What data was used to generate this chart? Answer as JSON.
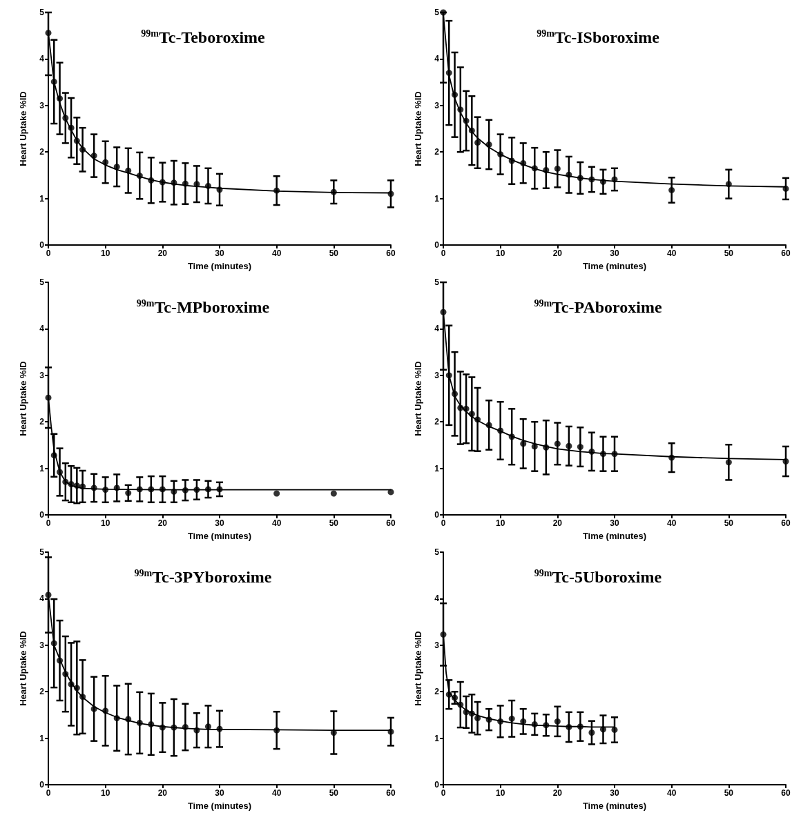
{
  "chart_data": [
    {
      "type": "scatter",
      "title": "$^{99m}$Tc-Teboroxime",
      "xlabel": "Time (minutes)",
      "ylabel": "Heart Uptake %ID",
      "xlim": [
        0,
        60
      ],
      "xticks": [
        0,
        10,
        20,
        30,
        40,
        50,
        60
      ],
      "ylim": [
        0,
        5
      ],
      "yticks": [
        0,
        1,
        2,
        3,
        4,
        5
      ],
      "marker": "circle",
      "x": [
        0,
        1,
        2,
        3,
        4,
        5,
        6,
        8,
        10,
        12,
        14,
        16,
        18,
        20,
        22,
        24,
        26,
        28,
        30,
        40,
        50,
        60
      ],
      "series": [
        {
          "type": "scatter",
          "color": "#000000",
          "values": [
            4.56,
            3.51,
            3.15,
            2.73,
            2.52,
            2.24,
            2.05,
            1.92,
            1.78,
            1.68,
            1.6,
            1.49,
            1.39,
            1.35,
            1.34,
            1.32,
            1.31,
            1.27,
            1.19,
            1.17,
            1.14,
            1.1
          ],
          "errors": [
            [
              3.65,
              5
            ],
            0.9,
            0.77,
            0.54,
            0.64,
            0.5,
            0.47,
            0.46,
            0.45,
            0.42,
            0.48,
            0.5,
            0.49,
            0.42,
            0.47,
            0.44,
            0.39,
            0.38,
            0.34,
            0.31,
            0.25,
            0.29
          ]
        },
        {
          "type": "line",
          "marker": "none",
          "color": "#000000",
          "x": [
            0,
            1,
            2,
            3,
            4,
            5,
            6,
            8,
            10,
            12,
            14,
            16,
            18,
            20,
            22,
            24,
            26,
            28,
            30,
            40,
            50,
            60
          ],
          "values": [
            4.56,
            3.5,
            3.05,
            2.72,
            2.47,
            2.25,
            2.08,
            1.85,
            1.72,
            1.62,
            1.55,
            1.47,
            1.4,
            1.35,
            1.31,
            1.28,
            1.26,
            1.24,
            1.22,
            1.16,
            1.13,
            1.12
          ]
        }
      ]
    },
    {
      "type": "scatter",
      "title": "$^{99m}$Tc-ISboroxime",
      "xlabel": "Time (minutes)",
      "ylabel": "Heart Uptake %ID",
      "xlim": [
        0,
        60
      ],
      "xticks": [
        0,
        10,
        20,
        30,
        40,
        50,
        60
      ],
      "ylim": [
        0,
        5
      ],
      "yticks": [
        0,
        1,
        2,
        3,
        4,
        5
      ],
      "marker": "circle",
      "x": [
        0,
        1,
        2,
        3,
        4,
        5,
        6,
        8,
        10,
        12,
        14,
        16,
        18,
        20,
        22,
        24,
        26,
        28,
        30,
        40,
        50,
        60
      ],
      "series": [
        {
          "type": "scatter",
          "color": "#000000",
          "values": [
            5.0,
            3.7,
            3.23,
            2.91,
            2.67,
            2.46,
            2.2,
            2.16,
            1.95,
            1.81,
            1.76,
            1.65,
            1.61,
            1.64,
            1.51,
            1.44,
            1.41,
            1.36,
            1.41,
            1.18,
            1.31,
            1.21
          ],
          "errors": [
            [
              3.49,
              5
            ],
            1.12,
            0.91,
            0.91,
            0.64,
            0.74,
            0.55,
            0.53,
            0.43,
            0.5,
            0.43,
            0.44,
            0.39,
            0.4,
            0.39,
            0.34,
            0.27,
            0.26,
            0.24,
            0.27,
            0.31,
            0.23
          ]
        },
        {
          "type": "line",
          "marker": "none",
          "color": "#000000",
          "x": [
            0,
            1,
            2,
            3,
            4,
            5,
            6,
            8,
            10,
            12,
            14,
            16,
            18,
            20,
            22,
            24,
            26,
            28,
            30,
            40,
            50,
            60
          ],
          "values": [
            4.95,
            3.65,
            3.15,
            2.85,
            2.62,
            2.44,
            2.3,
            2.1,
            1.95,
            1.83,
            1.73,
            1.64,
            1.57,
            1.52,
            1.48,
            1.44,
            1.41,
            1.39,
            1.37,
            1.31,
            1.27,
            1.25
          ]
        }
      ]
    },
    {
      "type": "scatter",
      "title": "$^{99m}$Tc-MPboroxime",
      "xlabel": "Time (minutes)",
      "ylabel": "Heart Uptake %ID",
      "xlim": [
        0,
        60
      ],
      "xticks": [
        0,
        10,
        20,
        30,
        40,
        50,
        60
      ],
      "ylim": [
        0,
        5
      ],
      "yticks": [
        0,
        1,
        2,
        3,
        4,
        5
      ],
      "marker": "circle",
      "x": [
        0,
        1,
        2,
        3,
        4,
        5,
        6,
        8,
        10,
        12,
        14,
        16,
        18,
        20,
        22,
        24,
        26,
        28,
        30,
        40,
        50,
        60
      ],
      "series": [
        {
          "type": "scatter",
          "color": "#000000",
          "values": [
            2.52,
            1.28,
            0.92,
            0.71,
            0.66,
            0.63,
            0.61,
            0.58,
            0.54,
            0.58,
            0.47,
            0.55,
            0.55,
            0.55,
            0.5,
            0.53,
            0.54,
            0.55,
            0.55,
            0.46,
            0.46,
            0.49
          ],
          "errors": [
            0.65,
            0.46,
            0.51,
            0.4,
            0.39,
            0.38,
            0.34,
            0.3,
            0.27,
            0.29,
            0.17,
            0.26,
            0.28,
            0.28,
            0.23,
            0.22,
            0.21,
            0.18,
            0.15,
            null,
            null,
            null
          ]
        },
        {
          "type": "line",
          "marker": "none",
          "color": "#000000",
          "x": [
            0,
            0.5,
            1,
            2,
            3,
            4,
            6,
            10,
            20,
            30,
            40,
            50,
            60
          ],
          "values": [
            2.52,
            1.9,
            1.4,
            0.92,
            0.72,
            0.63,
            0.57,
            0.55,
            0.54,
            0.54,
            0.54,
            0.54,
            0.54
          ]
        }
      ]
    },
    {
      "type": "scatter",
      "title": "$^{99m}$Tc-PAboroxime",
      "xlabel": "Time (minutes)",
      "ylabel": "Heart Uptake %ID",
      "xlim": [
        0,
        60
      ],
      "xticks": [
        0,
        10,
        20,
        30,
        40,
        50,
        60
      ],
      "ylim": [
        0,
        5
      ],
      "yticks": [
        0,
        1,
        2,
        3,
        4,
        5
      ],
      "marker": "circle",
      "x": [
        0,
        1,
        2,
        3,
        4,
        5,
        6,
        8,
        10,
        12,
        14,
        16,
        18,
        20,
        22,
        24,
        26,
        28,
        30,
        40,
        50,
        60
      ],
      "series": [
        {
          "type": "scatter",
          "color": "#000000",
          "values": [
            4.36,
            3.0,
            2.6,
            2.3,
            2.28,
            2.17,
            2.05,
            1.93,
            1.81,
            1.68,
            1.53,
            1.47,
            1.45,
            1.53,
            1.48,
            1.46,
            1.36,
            1.31,
            1.31,
            1.23,
            1.13,
            1.15
          ],
          "errors": [
            [
              3.12,
              5
            ],
            1.07,
            0.9,
            0.78,
            0.74,
            0.79,
            0.68,
            0.53,
            0.62,
            0.6,
            0.53,
            0.53,
            0.58,
            0.45,
            0.42,
            0.42,
            0.41,
            0.37,
            0.37,
            0.31,
            0.38,
            0.32
          ]
        },
        {
          "type": "line",
          "marker": "none",
          "color": "#000000",
          "x": [
            0,
            1,
            2,
            3,
            4,
            5,
            6,
            8,
            10,
            12,
            14,
            16,
            18,
            20,
            22,
            24,
            26,
            28,
            30,
            40,
            50,
            60
          ],
          "values": [
            4.36,
            3.0,
            2.55,
            2.35,
            2.22,
            2.11,
            2.03,
            1.9,
            1.8,
            1.69,
            1.6,
            1.53,
            1.47,
            1.42,
            1.39,
            1.36,
            1.34,
            1.32,
            1.31,
            1.25,
            1.21,
            1.19
          ]
        }
      ]
    },
    {
      "type": "scatter",
      "title": "$^{99m}$Tc-3PYboroxime",
      "xlabel": "Time (minutes)",
      "ylabel": "Heart Uptake %ID",
      "xlim": [
        0,
        60
      ],
      "xticks": [
        0,
        10,
        20,
        30,
        40,
        50,
        60
      ],
      "ylim": [
        0,
        5
      ],
      "yticks": [
        0,
        1,
        2,
        3,
        4,
        5
      ],
      "marker": "circle",
      "x": [
        0,
        1,
        2,
        3,
        4,
        5,
        6,
        8,
        10,
        12,
        14,
        16,
        18,
        20,
        22,
        24,
        26,
        28,
        30,
        40,
        50,
        60
      ],
      "series": [
        {
          "type": "scatter",
          "color": "#000000",
          "values": [
            4.08,
            3.04,
            2.67,
            2.38,
            2.16,
            2.08,
            1.89,
            1.63,
            1.59,
            1.43,
            1.41,
            1.33,
            1.3,
            1.23,
            1.23,
            1.24,
            1.17,
            1.25,
            1.2,
            1.17,
            1.12,
            1.14
          ],
          "errors": [
            0.81,
            0.95,
            0.86,
            0.81,
            0.89,
            1.0,
            0.79,
            0.69,
            0.75,
            0.7,
            0.76,
            0.66,
            0.66,
            0.53,
            0.61,
            0.5,
            0.37,
            0.45,
            0.39,
            0.4,
            0.46,
            0.3
          ]
        },
        {
          "type": "line",
          "marker": "none",
          "color": "#000000",
          "x": [
            0,
            1,
            2,
            3,
            4,
            5,
            6,
            8,
            10,
            12,
            14,
            16,
            18,
            20,
            22,
            24,
            26,
            28,
            30,
            40,
            50,
            60
          ],
          "values": [
            4.08,
            3.0,
            2.7,
            2.42,
            2.2,
            2.02,
            1.88,
            1.68,
            1.55,
            1.45,
            1.38,
            1.32,
            1.28,
            1.25,
            1.23,
            1.21,
            1.2,
            1.19,
            1.19,
            1.18,
            1.17,
            1.17
          ]
        }
      ]
    },
    {
      "type": "scatter",
      "title": "$^{99m}$Tc-5Uboroxime",
      "xlabel": "Time (minutes)",
      "ylabel": "Heart Uptake %ID",
      "xlim": [
        0,
        60
      ],
      "xticks": [
        0,
        10,
        20,
        30,
        40,
        50,
        60
      ],
      "ylim": [
        0,
        5
      ],
      "yticks": [
        0,
        1,
        2,
        3,
        4,
        5
      ],
      "marker": "circle",
      "x": [
        0,
        1,
        2,
        3,
        4,
        5,
        6,
        8,
        10,
        12,
        14,
        16,
        18,
        20,
        22,
        24,
        26,
        28,
        30
      ],
      "series": [
        {
          "type": "scatter",
          "color": "#000000",
          "values": [
            3.23,
            1.94,
            1.87,
            1.72,
            1.56,
            1.53,
            1.43,
            1.4,
            1.36,
            1.42,
            1.36,
            1.3,
            1.28,
            1.36,
            1.24,
            1.25,
            1.12,
            1.19,
            1.18
          ],
          "errors": [
            0.67,
            0.31,
            0.13,
            0.49,
            0.34,
            0.41,
            0.35,
            0.23,
            0.34,
            0.39,
            0.27,
            0.23,
            0.23,
            0.32,
            0.32,
            0.31,
            0.25,
            0.3,
            0.27
          ]
        },
        {
          "type": "line",
          "marker": "none",
          "color": "#000000",
          "x": [
            0,
            0.5,
            1,
            2,
            3,
            4,
            5,
            6,
            8,
            10,
            12,
            14,
            16,
            18,
            20,
            22,
            24,
            26,
            28,
            30
          ],
          "values": [
            3.23,
            2.4,
            2.0,
            1.82,
            1.7,
            1.6,
            1.54,
            1.49,
            1.42,
            1.37,
            1.33,
            1.3,
            1.28,
            1.27,
            1.26,
            1.25,
            1.25,
            1.24,
            1.24,
            1.24
          ]
        }
      ]
    }
  ]
}
